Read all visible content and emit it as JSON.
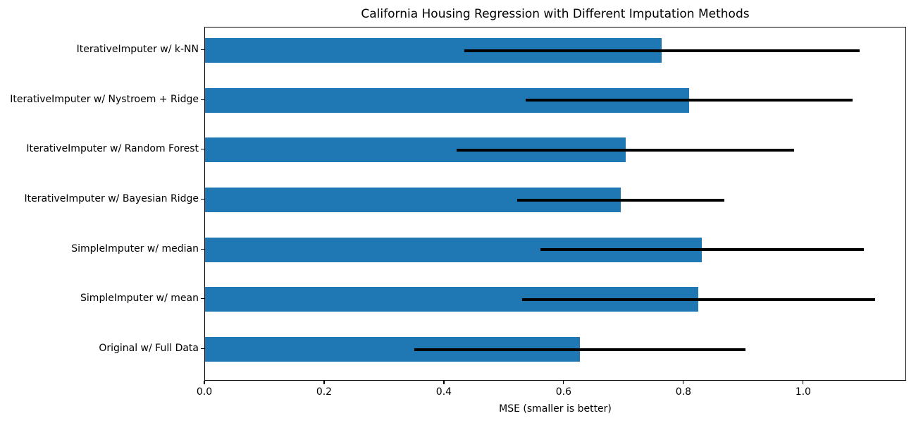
{
  "chart": {
    "title": "California Housing Regression with Different Imputation Methods",
    "xlabel": "MSE (smaller is better)"
  },
  "chart_data": {
    "type": "bar",
    "orientation": "horizontal",
    "title": "California Housing Regression with Different Imputation Methods",
    "xlabel": "MSE (smaller is better)",
    "ylabel": "",
    "xlim": [
      0,
      1.172
    ],
    "xticks": {
      "values": [
        0,
        0.2,
        0.4,
        0.6,
        0.8,
        1.0
      ],
      "labels": [
        "0.0",
        "0.2",
        "0.4",
        "0.6",
        "0.8",
        "1.0"
      ]
    },
    "grid": false,
    "legend": null,
    "bar_color": "#1f77b4",
    "error_color": "#000000",
    "rows_top_to_bottom": [
      {
        "label": "IterativeImputer w/ k-NN",
        "mse": 0.763,
        "err_low": 0.433,
        "err_high": 1.093
      },
      {
        "label": "IterativeImputer w/ Nystroem + Ridge",
        "mse": 0.808,
        "err_low": 0.535,
        "err_high": 1.081
      },
      {
        "label": "IterativeImputer w/ Random Forest",
        "mse": 0.702,
        "err_low": 0.42,
        "err_high": 0.984
      },
      {
        "label": "IterativeImputer w/ Bayesian Ridge",
        "mse": 0.694,
        "err_low": 0.521,
        "err_high": 0.867
      },
      {
        "label": "SimpleImputer w/ median",
        "mse": 0.83,
        "err_low": 0.56,
        "err_high": 1.1
      },
      {
        "label": "SimpleImputer w/ mean",
        "mse": 0.824,
        "err_low": 0.529,
        "err_high": 1.119
      },
      {
        "label": "Original w/ Full Data",
        "mse": 0.626,
        "err_low": 0.35,
        "err_high": 0.902
      }
    ]
  }
}
